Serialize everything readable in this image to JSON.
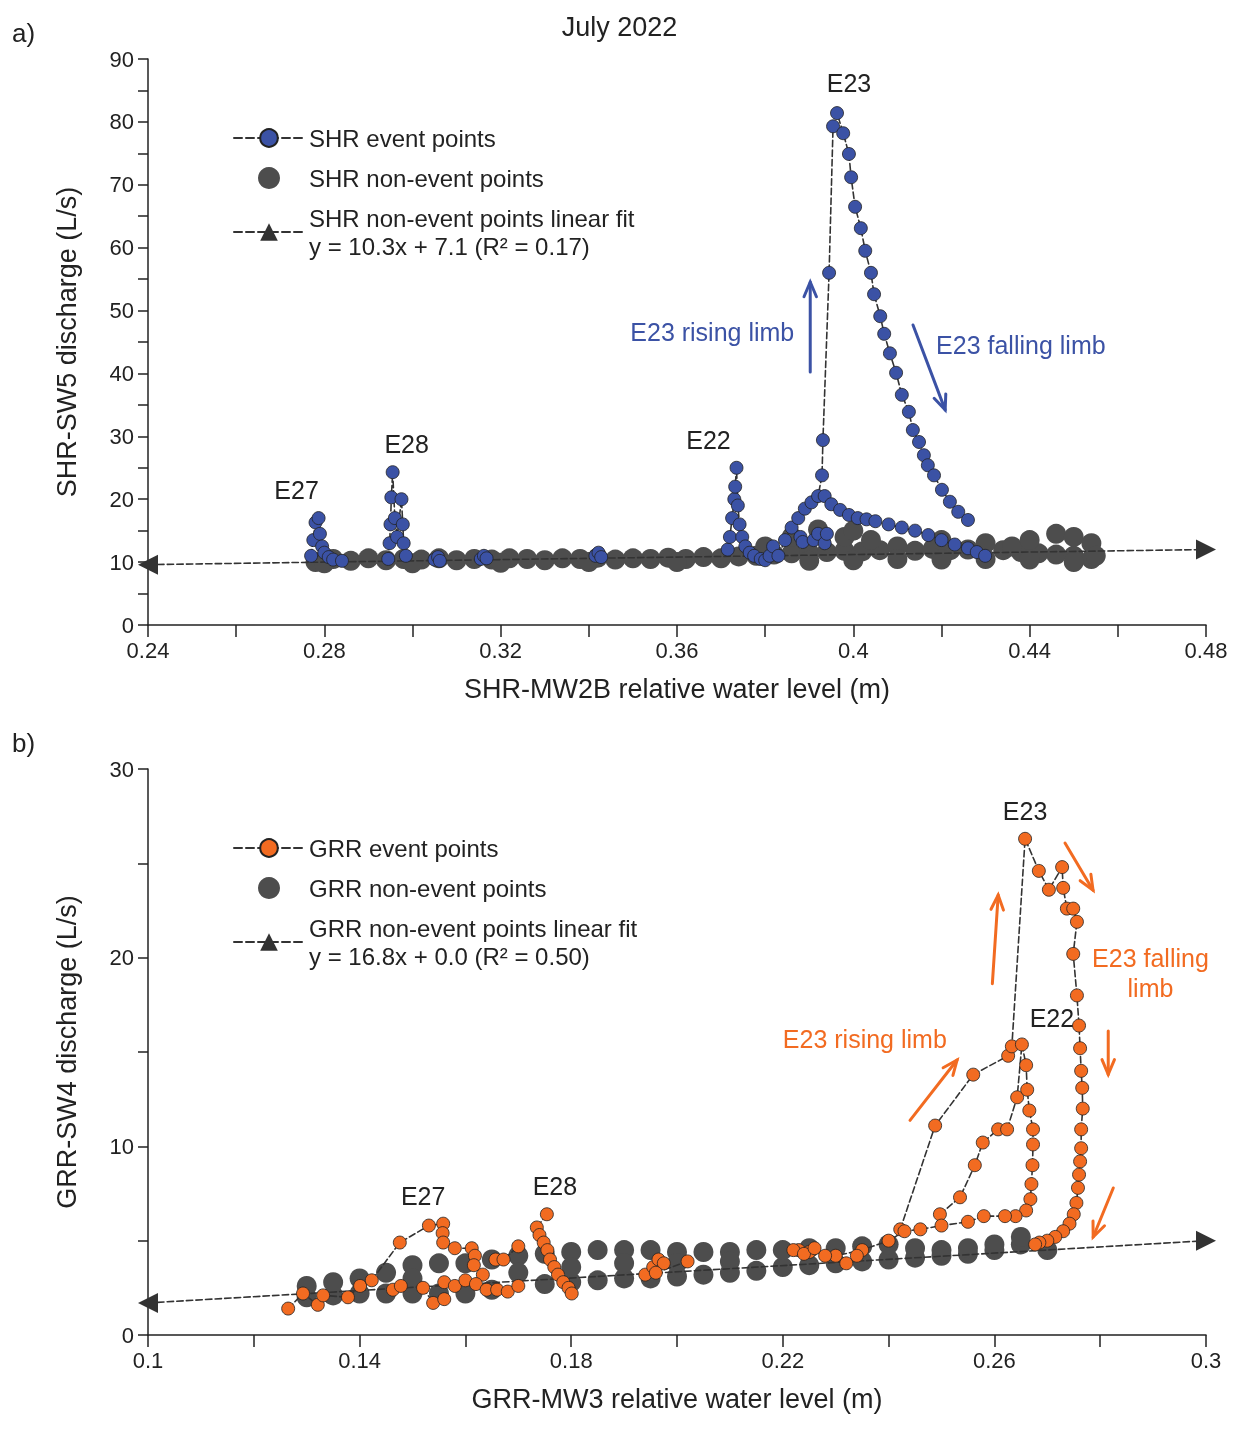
{
  "chart_data": [
    {
      "type": "scatter",
      "title": "July 2022",
      "xlabel": "SHR-MW2B relative water level (m)",
      "ylabel": "SHR-SW5 discharge (L/s)",
      "legend": "top left",
      "xlim": [
        0.24,
        0.48
      ],
      "ylim": [
        0,
        90
      ],
      "xticks": [
        0.24,
        {
          "value": 0.26,
          "label": null
        },
        0.28,
        {
          "value": 0.3,
          "label": null
        },
        0.32,
        {
          "value": 0.34,
          "label": null
        },
        0.36,
        {
          "value": 0.38,
          "label": null
        },
        0.4,
        {
          "value": 0.42,
          "label": null
        },
        0.44,
        {
          "value": 0.46,
          "label": null
        },
        0.48
      ],
      "yticks": [
        0,
        {
          "value": 5,
          "label": null
        },
        10,
        {
          "value": 15,
          "label": null
        },
        20,
        {
          "value": 25,
          "label": null
        },
        30,
        {
          "value": 35,
          "label": null
        },
        40,
        {
          "value": 45,
          "label": null
        },
        50,
        {
          "value": 55,
          "label": null
        },
        60,
        {
          "value": 65,
          "label": null
        },
        70,
        {
          "value": 75,
          "label": null
        },
        80,
        {
          "value": 85,
          "label": null
        },
        90
      ],
      "series": [
        {
          "name": "SHR event points",
          "type": "line",
          "color": "#3b52a5",
          "marker": "circle",
          "line_style": "dashed",
          "x": [
            0.277,
            0.2775,
            0.278,
            0.2787,
            0.279,
            0.2795,
            0.28,
            0.281,
            0.282,
            0.284,
            null,
            0.2945,
            0.2948,
            0.295,
            0.2952,
            0.2955,
            0.296,
            0.2965,
            0.2975,
            0.2978,
            0.298,
            0.2985,
            null,
            0.305,
            null,
            0.3058,
            null,
            0.3062,
            null,
            0.3155,
            null,
            0.3162,
            null,
            0.3168,
            null,
            0.3415,
            0.3422,
            0.3428,
            null,
            0.3715,
            0.372,
            0.3725,
            0.373,
            0.3732,
            0.3735,
            0.3738,
            0.3742,
            0.3748,
            0.3755,
            0.3765,
            0.3775,
            0.379,
            0.38,
            0.381,
            0.3818,
            null,
            0.383,
            0.3845,
            0.386,
            0.3875,
            0.389,
            0.3905,
            0.392,
            0.3929,
            0.3931,
            0.3945,
            0.3954,
            0.3963,
            0.3977,
            0.399,
            0.3995,
            0.4004,
            0.4017,
            0.4027,
            0.404,
            0.4047,
            0.4061,
            0.407,
            0.4083,
            0.4097,
            0.411,
            0.4126,
            0.4135,
            0.4149,
            0.416,
            0.4169,
            0.4183,
            0.4201,
            0.4219,
            0.4238,
            0.426,
            null,
            0.3935,
            0.395,
            0.397,
            0.399,
            0.401,
            0.403,
            0.405,
            0.408,
            0.411,
            0.414,
            0.417,
            0.42,
            0.423,
            0.426,
            0.428,
            0.4299,
            null,
            0.388,
            0.3885,
            0.391,
            0.392,
            0.3935,
            0.394
          ],
          "values": [
            11,
            13.5,
            16.3,
            17,
            14.5,
            12.5,
            11.5,
            10.8,
            10.4,
            10.2,
            null,
            10.5,
            13,
            16,
            20.3,
            24.3,
            17,
            14,
            20,
            16,
            13,
            11,
            null,
            10.4,
            null,
            10.8,
            null,
            10.2,
            null,
            10.5,
            null,
            11,
            null,
            10.6,
            null,
            11,
            11.5,
            10.8,
            null,
            12,
            14,
            17,
            20,
            22,
            25,
            19,
            16,
            14,
            12.5,
            11.5,
            11,
            10.5,
            10.3,
            11,
            12.5,
            null,
            11,
            13.5,
            15.5,
            17,
            18.5,
            19.5,
            20.5,
            23.8,
            29.4,
            56,
            79.3,
            81.4,
            78.2,
            74.9,
            71.2,
            66.5,
            63.1,
            59.5,
            56,
            52.6,
            49.1,
            46.3,
            43.2,
            40.1,
            36.6,
            33.9,
            31,
            29.1,
            27,
            25.4,
            23.8,
            21.5,
            19.6,
            18,
            16.7,
            null,
            20.5,
            19.2,
            18.3,
            17.5,
            17,
            16.8,
            16.5,
            16,
            15.5,
            15,
            14.3,
            13.5,
            12.8,
            12.2,
            11.6,
            11,
            null,
            14,
            13.2,
            13.5,
            14.5,
            13,
            14.5
          ]
        },
        {
          "name": "SHR non-event points",
          "type": "scatter",
          "color": "#4d4d4d",
          "marker": "circle",
          "x": [
            0.278,
            0.282,
            0.286,
            0.29,
            0.294,
            0.298,
            0.302,
            0.306,
            0.31,
            0.314,
            0.318,
            0.322,
            0.326,
            0.33,
            0.334,
            0.338,
            0.342,
            0.346,
            0.35,
            0.354,
            0.358,
            0.362,
            0.366,
            0.37,
            0.374,
            0.378,
            0.382,
            0.386,
            0.39,
            0.394,
            0.398,
            0.402,
            0.406,
            0.414,
            0.418,
            0.422,
            0.426,
            0.434,
            0.438,
            0.442,
            0.446,
            0.45,
            0.454,
            0.28,
            0.3,
            0.32,
            0.34,
            0.36,
            0.38,
            0.386,
            0.392,
            0.398,
            0.4,
            0.404,
            0.41,
            0.42,
            0.43,
            0.436,
            0.44,
            0.446,
            0.45,
            0.454,
            0.455,
            0.39,
            0.4,
            0.41,
            0.42,
            0.43,
            0.44,
            0.45
          ],
          "values": [
            10,
            10.5,
            10.2,
            10.6,
            10.3,
            10.5,
            10.4,
            10.6,
            10.3,
            10.5,
            10.4,
            10.6,
            10.5,
            10.3,
            10.6,
            10.5,
            10.7,
            10.4,
            10.6,
            10.5,
            10.7,
            10.5,
            10.8,
            10.6,
            10.9,
            11,
            11.2,
            11.4,
            11.5,
            11.6,
            11.8,
            11.7,
            11.9,
            11.8,
            12.1,
            11.9,
            12,
            11.9,
            11.6,
            11.4,
            11.2,
            11,
            10.5,
            9.8,
            9.8,
            9.9,
            10,
            10,
            12.5,
            14,
            15.2,
            14,
            15,
            13.5,
            12.5,
            13.5,
            13,
            12.5,
            13.5,
            14.5,
            14,
            13,
            11,
            10.2,
            10.3,
            10.5,
            10.4,
            10.5,
            10.4,
            10
          ]
        },
        {
          "name": "SHR non-event points linear fit\ny = 10.3x + 7.1 (R² = 0.17)",
          "type": "line",
          "color": "#333333",
          "marker": "triangle",
          "line_style": "dashed",
          "x": [
            0.24,
            0.48
          ],
          "values": [
            9.6,
            12.0
          ]
        }
      ],
      "annotations": [
        "a)",
        {
          "text": "E27",
          "x": 0.2787,
          "y": 17
        },
        {
          "text": "E28",
          "x": 0.2955,
          "y": 24.3
        },
        {
          "text": "E22",
          "x": 0.3735,
          "y": 25
        },
        {
          "text": "E23",
          "x": 0.3963,
          "y": 81.4
        },
        "E23 rising limb",
        "E23 falling limb"
      ]
    },
    {
      "type": "scatter",
      "xlabel": "GRR-MW3 relative water level (m)",
      "ylabel": "GRR-SW4 discharge (L/s)",
      "legend": "top left",
      "xlim": [
        0.1,
        0.3
      ],
      "ylim": [
        0,
        30
      ],
      "xticks": [
        0.1,
        {
          "value": 0.12,
          "label": null
        },
        0.14,
        {
          "value": 0.16,
          "label": null
        },
        0.18,
        {
          "value": 0.2,
          "label": null
        },
        0.22,
        {
          "value": 0.24,
          "label": null
        },
        0.26,
        {
          "value": 0.28,
          "label": null
        },
        0.3
      ],
      "yticks": [
        0,
        {
          "value": 5,
          "label": null
        },
        10,
        {
          "value": 15,
          "label": null
        },
        20,
        {
          "value": 25,
          "label": null
        },
        30
      ],
      "series": [
        {
          "name": "GRR event points",
          "type": "line",
          "color": "#f26b21",
          "marker": "circle",
          "line_style": "dashed",
          "x": [
            0.2422,
            0.2488,
            0.256,
            0.2626,
            0.2633,
            0.2658,
            0.2684,
            0.2703,
            0.2728,
            0.273,
            0.2737,
            0.2749,
            0.2756,
            0.2749,
            0.2756,
            0.276,
            0.2762,
            0.2764,
            0.2766,
            0.2767,
            0.2764,
            0.2764,
            0.2762,
            0.276,
            0.2758,
            0.2755,
            0.275,
            0.2742,
            0.273,
            0.2715,
            0.27,
            0.2685,
            0.2677,
            null,
            0.2497,
            0.2535,
            0.2563,
            0.2578,
            0.2607,
            0.2624,
            0.2643,
            0.2652,
            0.266,
            0.2662,
            0.2666,
            0.2673,
            0.2673,
            0.2672,
            0.267,
            0.2668,
            0.266,
            0.264,
            0.262,
            0.258,
            0.255,
            0.25,
            0.246,
            0.243,
            0.24,
            0.235,
            0.23,
            0.225,
            0.223,
            null,
            0.222,
            0.224,
            0.226,
            0.228,
            0.232,
            0.234,
            null,
            0.194,
            0.1955,
            0.1965,
            0.1975,
            0.196,
            0.202,
            null,
            0.1265,
            0.1293,
            0.1321,
            0.1331,
            0.1378,
            0.1401,
            0.1423,
            0.1476,
            0.1531,
            0.1558,
            0.1557,
            0.1558,
            0.158,
            0.1612,
            0.1618,
            0.1616,
            0.1633,
            null,
            0.156,
            0.158,
            0.16,
            0.162,
            0.164,
            0.166,
            0.168,
            0.17,
            null,
            0.152,
            0.1539,
            0.156,
            null,
            0.1463,
            0.1478,
            null,
            0.1657,
            0.1672,
            0.17,
            null,
            0.1754,
            0.1735,
            0.174,
            0.1748,
            0.1755,
            0.176,
            0.1768,
            0.1775,
            0.1785,
            0.1795,
            0.1801
          ],
          "values": [
            5.6,
            11.1,
            13.8,
            14.8,
            15.3,
            26.3,
            24.6,
            23.6,
            24.8,
            23.7,
            22.6,
            22.6,
            21.9,
            20.2,
            18,
            16.4,
            15.2,
            14,
            13.1,
            12,
            10.9,
            9.9,
            9.2,
            8.5,
            7.8,
            7,
            6.4,
            5.9,
            5.5,
            5.2,
            5,
            4.9,
            4.8,
            null,
            6.4,
            7.3,
            9,
            10.2,
            10.9,
            10.9,
            12.6,
            15.4,
            14.3,
            13,
            11.9,
            10.9,
            10.1,
            9,
            8,
            7.2,
            6.6,
            6.3,
            6.3,
            6.3,
            6,
            5.8,
            5.6,
            5.5,
            5,
            4.5,
            4.2,
            4.4,
            4.5,
            null,
            4.5,
            4.3,
            4.6,
            4.2,
            3.8,
            4.2,
            null,
            3.2,
            3.6,
            4,
            3.8,
            3.3,
            3.9,
            null,
            1.4,
            2.2,
            1.6,
            2.1,
            2,
            2.6,
            2.9,
            4.9,
            5.8,
            5.9,
            5.4,
            4.9,
            4.6,
            4.6,
            4.2,
            3.7,
            3.2,
            null,
            2.8,
            2.6,
            2.9,
            2.7,
            2.4,
            2.4,
            2.3,
            2.6,
            null,
            2.5,
            1.7,
            1.9,
            null,
            2.4,
            2.6,
            null,
            4,
            4,
            4.7,
            null,
            6.4,
            5.7,
            5.3,
            4.9,
            4.5,
            4,
            3.6,
            3.2,
            2.8,
            2.5,
            2.2
          ]
        },
        {
          "name": "GRR non-event points",
          "type": "scatter",
          "color": "#4d4d4d",
          "marker": "circle",
          "x": [
            0.13,
            0.135,
            0.14,
            0.145,
            0.15,
            0.155,
            0.16,
            0.165,
            0.175,
            0.18,
            0.185,
            0.19,
            0.195,
            0.2,
            0.205,
            0.21,
            0.215,
            0.22,
            0.225,
            0.23,
            0.235,
            0.24,
            0.245,
            0.25,
            0.255,
            0.26,
            0.265,
            0.27,
            0.13,
            0.135,
            0.14,
            0.145,
            0.15,
            0.155,
            0.16,
            0.165,
            0.17,
            0.175,
            0.18,
            0.185,
            0.19,
            0.195,
            0.2,
            0.205,
            0.21,
            0.215,
            0.22,
            0.225,
            0.23,
            0.235,
            0.24,
            0.245,
            0.25,
            0.255,
            0.26,
            0.265,
            0.15,
            0.17,
            0.18,
            0.19,
            0.2,
            0.21
          ],
          "values": [
            2.0,
            2.1,
            2.2,
            2.2,
            2.2,
            2.2,
            2.2,
            2.4,
            2.7,
            2.8,
            2.9,
            3.0,
            3.0,
            3.1,
            3.2,
            3.3,
            3.4,
            3.6,
            3.7,
            3.8,
            3.9,
            4.0,
            4.1,
            4.2,
            4.3,
            4.5,
            4.8,
            4.5,
            2.6,
            2.8,
            3.0,
            3.3,
            3.7,
            3.8,
            3.8,
            4.0,
            4.2,
            4.3,
            4.4,
            4.5,
            4.5,
            4.5,
            4.4,
            4.4,
            4.4,
            4.5,
            4.5,
            4.6,
            4.6,
            4.7,
            4.8,
            4.6,
            4.5,
            4.6,
            4.8,
            5.2,
            3.0,
            3.3,
            3.6,
            3.8,
            3.8,
            3.9
          ]
        },
        {
          "name": "GRR non-event points linear fit\ny = 16.8x + 0.0 (R² = 0.50)",
          "type": "line",
          "color": "#333333",
          "marker": "triangle",
          "line_style": "dashed",
          "x": [
            0.1,
            0.3
          ],
          "values": [
            1.7,
            5.0
          ]
        }
      ],
      "annotations": [
        "b)",
        {
          "text": "E27",
          "x": 0.1558,
          "y": 5.9
        },
        {
          "text": "E28",
          "x": 0.1754,
          "y": 6.4
        },
        {
          "text": "E23",
          "x": 0.2658,
          "y": 26.3
        },
        {
          "text": "E22",
          "x": 0.2652,
          "y": 15.4
        },
        "E23 rising limb",
        "E23 falling\nlimb"
      ]
    }
  ]
}
